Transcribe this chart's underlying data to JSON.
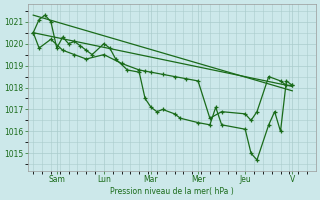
{
  "bg_color": "#cce8ea",
  "grid_color": "#aacccc",
  "line_color": "#1a6b1a",
  "ylabel": "Pression niveau de la mer( hPa )",
  "ylim": [
    1014.2,
    1021.8
  ],
  "yticks": [
    1015,
    1016,
    1017,
    1018,
    1019,
    1020,
    1021
  ],
  "day_labels": [
    "Sam",
    "Lun",
    "Mar",
    "Mer",
    "Jeu",
    "V"
  ],
  "day_positions": [
    0.333,
    1.0,
    1.667,
    2.333,
    3.0,
    3.667
  ],
  "xlim": [
    -0.08,
    4.0
  ],
  "series1_x": [
    0.0,
    0.083,
    0.167,
    0.25,
    0.333,
    0.417,
    0.5,
    0.583,
    0.667,
    0.75,
    0.833,
    1.0,
    1.083,
    1.167,
    1.333,
    1.5,
    1.583,
    1.667,
    1.75,
    1.833,
    2.0,
    2.083,
    2.333,
    2.5,
    2.583,
    2.667,
    3.0,
    3.083,
    3.167,
    3.333,
    3.417,
    3.5,
    3.583,
    3.667
  ],
  "series1_y": [
    1020.5,
    1021.1,
    1021.3,
    1021.0,
    1019.8,
    1020.3,
    1020.0,
    1020.1,
    1019.9,
    1019.7,
    1019.5,
    1020.0,
    1019.8,
    1019.3,
    1018.8,
    1018.7,
    1017.5,
    1017.1,
    1016.9,
    1017.0,
    1016.8,
    1016.6,
    1016.4,
    1016.3,
    1017.1,
    1016.3,
    1016.1,
    1015.0,
    1014.7,
    1016.3,
    1016.9,
    1016.0,
    1018.3,
    1018.1
  ],
  "series2_x": [
    0.0,
    0.083,
    0.25,
    0.417,
    0.583,
    0.75,
    1.0,
    1.25,
    1.5,
    1.583,
    1.667,
    1.833,
    2.0,
    2.167,
    2.333,
    2.5,
    2.667,
    3.0,
    3.083,
    3.167,
    3.333,
    3.5,
    3.583,
    3.667
  ],
  "series2_y": [
    1020.5,
    1019.8,
    1020.2,
    1019.7,
    1019.5,
    1019.3,
    1019.5,
    1019.1,
    1018.8,
    1018.75,
    1018.7,
    1018.6,
    1018.5,
    1018.4,
    1018.3,
    1016.6,
    1016.9,
    1016.8,
    1016.5,
    1016.9,
    1018.5,
    1018.3,
    1018.1,
    1018.1
  ],
  "trend1_x": [
    0.0,
    3.667
  ],
  "trend1_y": [
    1020.5,
    1018.05
  ],
  "trend2_x": [
    0.0,
    3.667
  ],
  "trend2_y": [
    1021.3,
    1017.85
  ]
}
